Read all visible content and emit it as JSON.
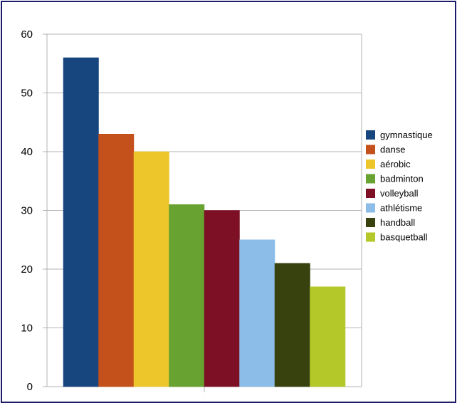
{
  "chart_data": {
    "type": "bar",
    "title": "",
    "xlabel": "",
    "ylabel": "",
    "ylim": [
      0,
      60
    ],
    "yticks": [
      0,
      10,
      20,
      30,
      40,
      50,
      60
    ],
    "grid": true,
    "legend_position": "right",
    "categories": [
      "gymnastique",
      "danse",
      "aérobic",
      "badminton",
      "volleyball",
      "athlétisme",
      "handball",
      "basquetball"
    ],
    "values": [
      56,
      43,
      40,
      31,
      30,
      25,
      21,
      17
    ],
    "colors": [
      "#17457e",
      "#c4501c",
      "#ecc62a",
      "#68a230",
      "#7d1024",
      "#8bbde8",
      "#37420f",
      "#b4c82a"
    ]
  }
}
